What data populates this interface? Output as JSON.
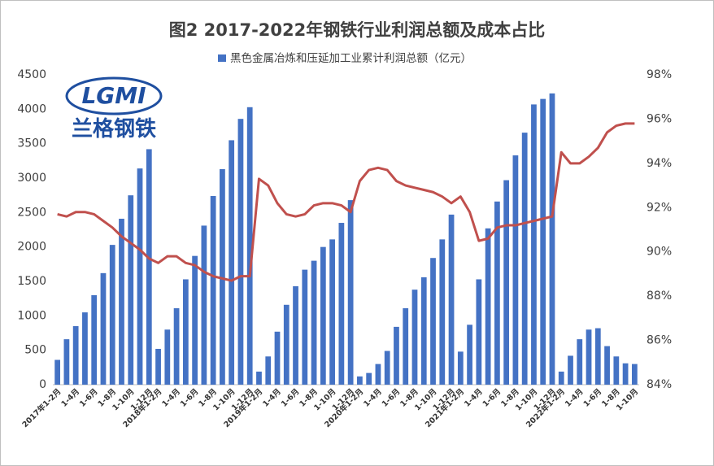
{
  "chart_data": {
    "type": "bar-line",
    "title": "图2 2017-2022年钢铁行业利润总额及成本占比",
    "logo": {
      "text": "LGMI",
      "subtitle": "兰格钢铁"
    },
    "categories": [
      "2017年1-2月",
      null,
      "1-4月",
      null,
      "1-6月",
      null,
      "1-8月",
      null,
      "1-10月",
      null,
      "1-12月",
      "2018年1-2月",
      null,
      "1-4月",
      null,
      "1-6月",
      null,
      "1-8月",
      null,
      "1-10月",
      null,
      "1-12月",
      "2019年1-2月",
      null,
      "1-4月",
      null,
      "1-6月",
      null,
      "1-8月",
      null,
      "1-10月",
      null,
      "1-12月",
      "2020年1-2月",
      null,
      "1-4月",
      null,
      "1-6月",
      null,
      "1-8月",
      null,
      "1-10月",
      null,
      "1-12月",
      "2021年1-2月",
      null,
      "1-4月",
      null,
      "1-6月",
      null,
      "1-8月",
      null,
      "1-10月",
      null,
      "1-12月",
      "2022年1-2月",
      null,
      "1-4月",
      null,
      "1-6月",
      null,
      "1-8月",
      null,
      "1-10月"
    ],
    "series": [
      {
        "name": "黑色金属冶炼和压延加工业累计利润总额（亿元）",
        "type": "bar",
        "color": "#4472c4",
        "values": [
          360,
          660,
          850,
          1050,
          1300,
          1620,
          2030,
          2410,
          2750,
          3140,
          3420,
          520,
          800,
          1110,
          1530,
          1870,
          2310,
          2740,
          3130,
          3550,
          3860,
          4030,
          190,
          410,
          770,
          1160,
          1430,
          1670,
          1800,
          2000,
          2110,
          2350,
          2680,
          120,
          170,
          300,
          490,
          840,
          1110,
          1380,
          1560,
          1840,
          2110,
          2470,
          480,
          870,
          1530,
          2270,
          2660,
          2970,
          3330,
          3660,
          4070,
          4150,
          4230,
          190,
          420,
          660,
          800,
          820,
          560,
          410,
          310,
          300
        ]
      },
      {
        "type": "line",
        "axis": "y2",
        "color": "#c0504d",
        "values": [
          91.7,
          91.6,
          91.8,
          91.8,
          91.7,
          91.4,
          91.1,
          90.7,
          90.4,
          90.1,
          89.7,
          89.5,
          89.8,
          89.8,
          89.5,
          89.4,
          89.1,
          88.9,
          88.8,
          88.7,
          88.9,
          88.9,
          93.3,
          93.0,
          92.2,
          91.7,
          91.6,
          91.7,
          92.1,
          92.2,
          92.2,
          92.1,
          91.8,
          93.2,
          93.7,
          93.8,
          93.7,
          93.2,
          93.0,
          92.9,
          92.8,
          92.7,
          92.5,
          92.2,
          92.5,
          91.8,
          90.5,
          90.6,
          91.1,
          91.2,
          91.2,
          91.3,
          91.4,
          91.5,
          91.6,
          94.5,
          94.0,
          94.0,
          94.3,
          94.7,
          95.4,
          95.7,
          95.8,
          95.8
        ]
      }
    ],
    "ylim": [
      0,
      4500
    ],
    "yticks": [
      0,
      500,
      1000,
      1500,
      2000,
      2500,
      3000,
      3500,
      4000,
      4500
    ],
    "y2lim": [
      84,
      98
    ],
    "y2ticks": [
      {
        "value": 84,
        "label": "84%"
      },
      {
        "value": 86,
        "label": "86%"
      },
      {
        "value": 88,
        "label": "88%"
      },
      {
        "value": 90,
        "label": "90%"
      },
      {
        "value": 92,
        "label": "92%"
      },
      {
        "value": 94,
        "label": "94%"
      },
      {
        "value": 96,
        "label": "96%"
      },
      {
        "value": 98,
        "label": "98%"
      }
    ],
    "grid": false
  }
}
